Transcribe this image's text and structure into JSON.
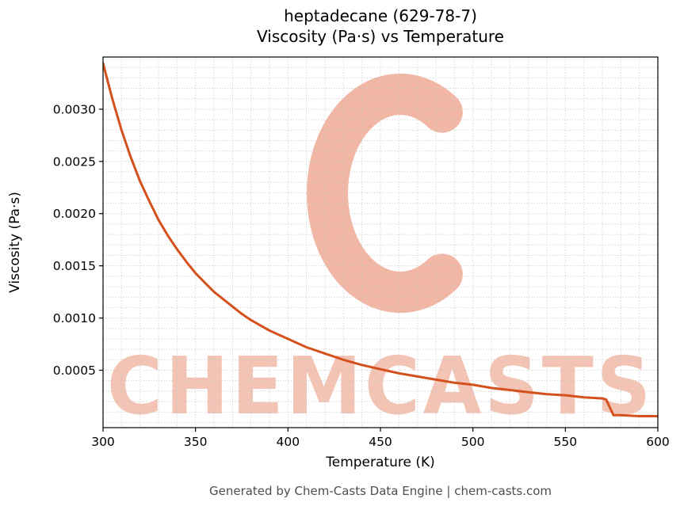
{
  "title": {
    "line1": "heptadecane (629-78-7)",
    "line2": "Viscosity (Pa·s) vs Temperature"
  },
  "footer": "Generated by Chem-Casts Data Engine | chem-casts.com",
  "watermark": {
    "logo": "c-swirl-logo",
    "text": "CHEMCASTS",
    "color": "#dd5226",
    "logo_opacity": 0.42,
    "text_opacity": 0.34
  },
  "chart_data": {
    "type": "line",
    "title": "heptadecane (629-78-7) Viscosity (Pa·s) vs Temperature",
    "xlabel": "Temperature (K)",
    "ylabel": "Viscosity (Pa·s)",
    "xlim": [
      300,
      600
    ],
    "ylim": [
      -5e-05,
      0.0035
    ],
    "x_ticks": [
      300,
      350,
      400,
      450,
      500,
      550,
      600
    ],
    "y_ticks": [
      0.0005,
      0.001,
      0.0015,
      0.002,
      0.0025,
      0.003
    ],
    "grid": true,
    "grid_minor_x_step": 10,
    "grid_minor_y_step": 0.0001,
    "legend": "none",
    "series": [
      {
        "name": "viscosity",
        "color": "#d4511e",
        "x": [
          300,
          305,
          310,
          315,
          320,
          325,
          330,
          335,
          340,
          345,
          350,
          355,
          360,
          365,
          370,
          375,
          380,
          385,
          390,
          395,
          400,
          410,
          420,
          430,
          440,
          450,
          460,
          470,
          480,
          490,
          500,
          510,
          520,
          530,
          540,
          550,
          560,
          570,
          572,
          576,
          580,
          590,
          600
        ],
        "y": [
          0.00344,
          0.0031,
          0.0028,
          0.00254,
          0.00231,
          0.00212,
          0.00194,
          0.00179,
          0.00166,
          0.00154,
          0.00143,
          0.00134,
          0.00125,
          0.00118,
          0.00111,
          0.00104,
          0.00098,
          0.00093,
          0.00088,
          0.00084,
          0.0008,
          0.00072,
          0.00066,
          0.0006,
          0.00055,
          0.00051,
          0.00047,
          0.00044,
          0.00041,
          0.00038,
          0.00036,
          0.00033,
          0.00031,
          0.00029,
          0.00027,
          0.00026,
          0.00024,
          0.00023,
          0.00022,
          7e-05,
          7e-05,
          6e-05,
          6e-05
        ]
      }
    ]
  }
}
